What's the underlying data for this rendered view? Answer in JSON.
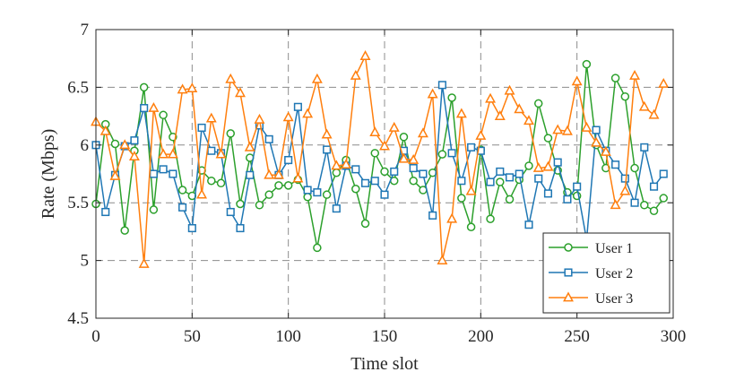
{
  "chart_data": {
    "type": "line",
    "title": "",
    "xlabel": "Time slot",
    "ylabel": "Rate (Mbps)",
    "xlim": [
      0,
      300
    ],
    "ylim": [
      4.5,
      7
    ],
    "xticks": [
      0,
      50,
      100,
      150,
      200,
      250,
      300
    ],
    "yticks": [
      4.5,
      5,
      5.5,
      6,
      6.5,
      7
    ],
    "xtick_labels": [
      "0",
      "50",
      "100",
      "150",
      "200",
      "250",
      "300"
    ],
    "ytick_labels": [
      "4.5",
      "5",
      "5.5",
      "6",
      "6.5",
      "7"
    ],
    "grid": true,
    "legend_position": "bottom-right",
    "x": [
      0,
      5,
      10,
      15,
      20,
      25,
      30,
      35,
      40,
      45,
      50,
      55,
      60,
      65,
      70,
      75,
      80,
      85,
      90,
      95,
      100,
      105,
      110,
      115,
      120,
      125,
      130,
      135,
      140,
      145,
      150,
      155,
      160,
      165,
      170,
      175,
      180,
      185,
      190,
      195,
      200,
      205,
      210,
      215,
      220,
      225,
      230,
      235,
      240,
      245,
      250,
      255,
      260,
      265,
      270,
      275,
      280,
      285,
      290,
      295
    ],
    "series": [
      {
        "name": "User 1",
        "color": "#2ca02c",
        "marker": "circle",
        "values": [
          5.49,
          6.18,
          6.01,
          5.26,
          5.95,
          6.5,
          5.44,
          6.26,
          6.07,
          5.61,
          5.56,
          5.78,
          5.69,
          5.67,
          6.1,
          5.49,
          5.89,
          5.48,
          5.57,
          5.65,
          5.65,
          5.7,
          5.55,
          5.11,
          5.57,
          5.76,
          5.87,
          5.62,
          5.32,
          5.93,
          5.77,
          5.69,
          6.07,
          5.69,
          5.61,
          5.76,
          5.92,
          6.41,
          5.54,
          5.29,
          5.96,
          5.36,
          5.68,
          5.53,
          5.7,
          5.82,
          6.36,
          6.06,
          5.78,
          5.59,
          5.56,
          6.7,
          6.0,
          5.8,
          6.58,
          6.42,
          5.8,
          5.48,
          5.43,
          5.54
        ]
      },
      {
        "name": "User 2",
        "color": "#1f77b4",
        "marker": "square",
        "values": [
          6.0,
          5.42,
          5.74,
          5.99,
          6.04,
          6.32,
          5.75,
          5.79,
          5.75,
          5.46,
          5.28,
          6.15,
          5.95,
          5.93,
          5.42,
          5.28,
          5.74,
          6.17,
          6.05,
          5.74,
          5.87,
          6.33,
          5.61,
          5.59,
          5.96,
          5.45,
          5.82,
          5.79,
          5.67,
          5.69,
          5.57,
          5.77,
          5.95,
          5.8,
          5.75,
          5.39,
          6.52,
          5.93,
          5.69,
          5.98,
          5.95,
          5.68,
          5.77,
          5.72,
          5.75,
          5.31,
          5.71,
          5.58,
          5.85,
          5.53,
          5.64,
          5.18,
          6.13,
          5.95,
          5.83,
          5.71,
          5.5,
          5.98,
          5.64,
          5.75
        ]
      },
      {
        "name": "User 3",
        "color": "#ff7f0e",
        "marker": "triangle",
        "values": [
          6.2,
          6.12,
          5.73,
          6.0,
          5.9,
          4.97,
          6.32,
          5.92,
          5.92,
          6.48,
          6.49,
          5.57,
          6.23,
          5.92,
          6.57,
          6.45,
          5.98,
          6.22,
          5.74,
          5.74,
          6.24,
          5.71,
          6.27,
          6.57,
          6.09,
          5.82,
          5.83,
          6.6,
          6.77,
          6.11,
          5.99,
          6.15,
          5.88,
          5.87,
          6.1,
          6.44,
          5.0,
          5.36,
          6.27,
          5.6,
          6.08,
          6.4,
          6.25,
          6.47,
          6.31,
          6.21,
          5.8,
          5.81,
          6.13,
          6.12,
          6.55,
          6.15,
          6.02,
          5.94,
          5.48,
          5.6,
          6.6,
          6.33,
          6.26,
          6.53
        ]
      }
    ]
  }
}
